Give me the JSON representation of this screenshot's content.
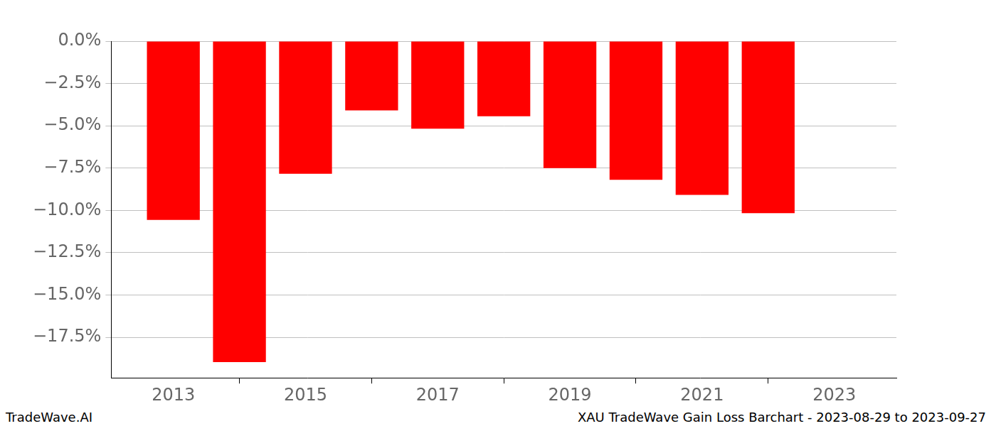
{
  "chart_data": {
    "type": "bar",
    "x": [
      2013,
      2014,
      2015,
      2016,
      2017,
      2018,
      2019,
      2020,
      2021,
      2022
    ],
    "values": [
      -10.56,
      -18.97,
      -7.84,
      -4.09,
      -5.17,
      -4.44,
      -7.5,
      -8.19,
      -9.09,
      -10.17
    ],
    "color": "#ff0000",
    "xlim": [
      2012.06,
      2023.94
    ],
    "xticks": [
      2013,
      2015,
      2017,
      2019,
      2021,
      2023
    ],
    "ylim": [
      -19.9,
      0
    ],
    "yticks": [
      {
        "value": 0,
        "label": "0.0%"
      },
      {
        "value": -2.5,
        "label": "−2.5%"
      },
      {
        "value": -5,
        "label": "−5.0%"
      },
      {
        "value": -7.5,
        "label": "−7.5%"
      },
      {
        "value": -10,
        "label": "−10.0%"
      },
      {
        "value": -12.5,
        "label": "−12.5%"
      },
      {
        "value": -15,
        "label": "−15.0%"
      },
      {
        "value": -17.5,
        "label": "−17.5%"
      }
    ],
    "grid": true,
    "annotations": [
      "TradeWave.AI",
      "XAU TradeWave Gain Loss Barchart - 2023-08-29 to 2023-09-27"
    ]
  }
}
